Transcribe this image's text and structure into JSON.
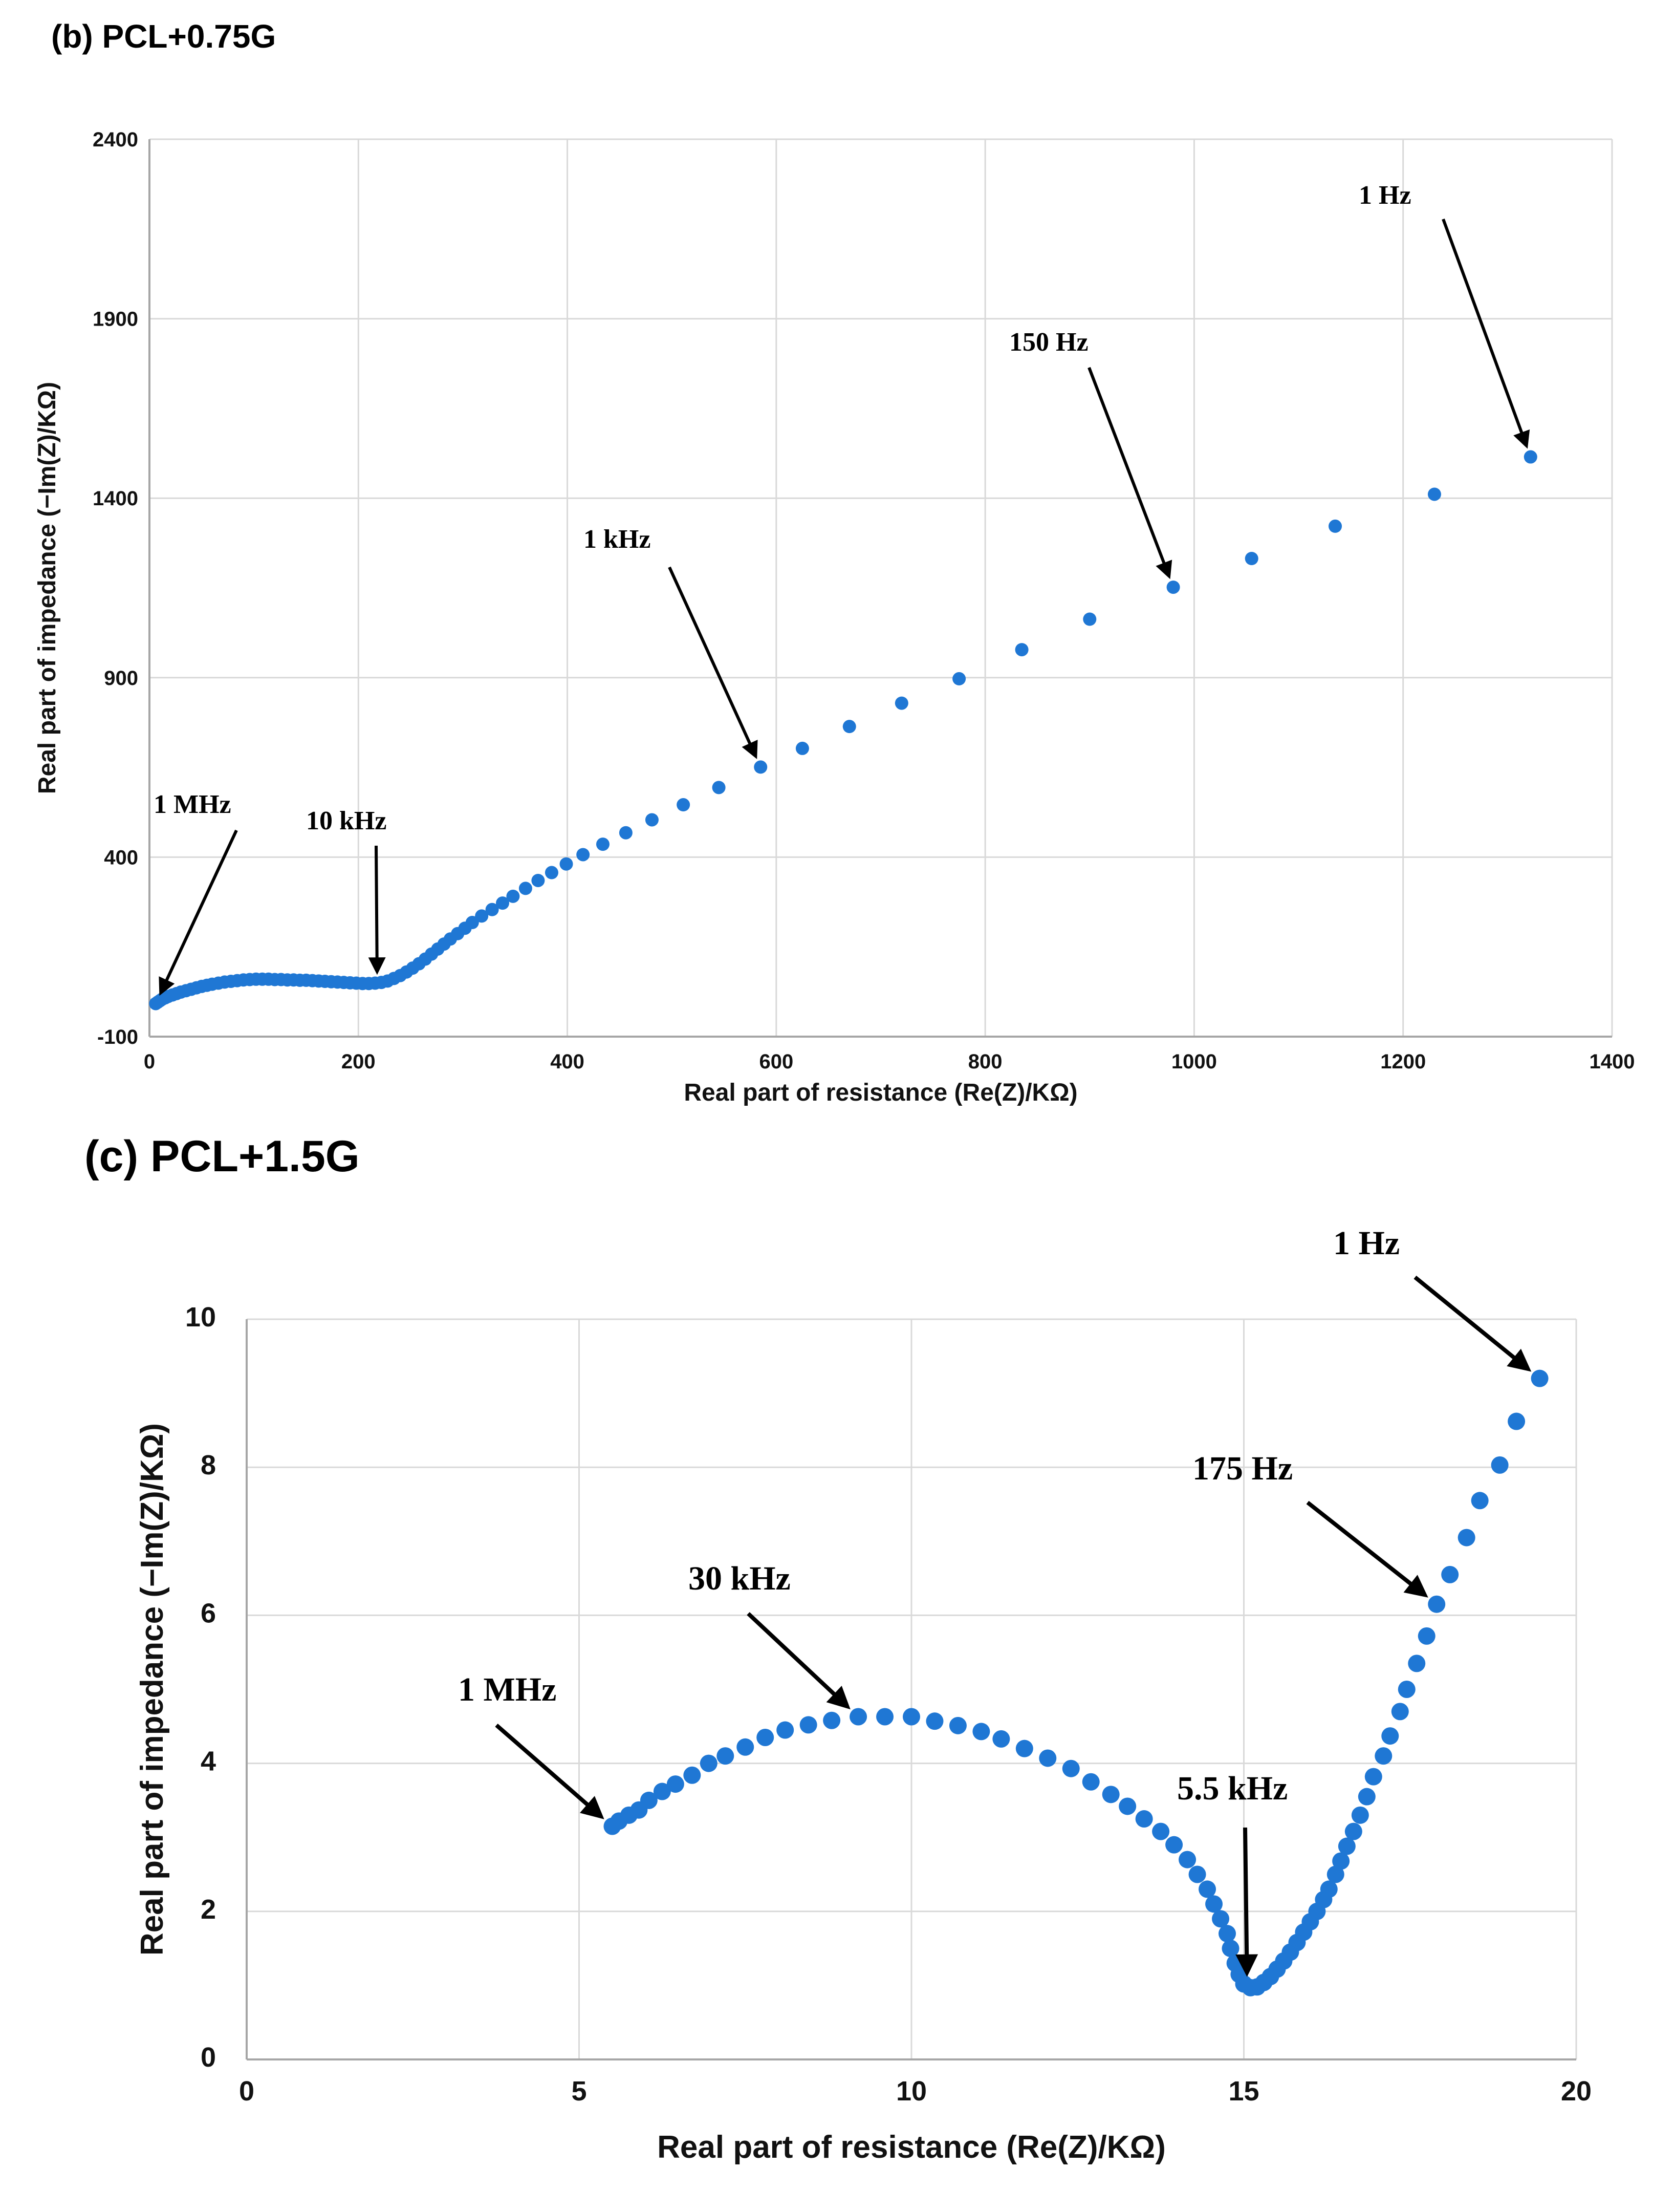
{
  "panels": {
    "b_title": "(b) PCL+0.75G",
    "c_title": "(c) PCL+1.5G"
  },
  "colors": {
    "marker": "#1f77d4",
    "grid": "#d9d9d9",
    "axis": "#a6a6a6",
    "arrow": "#000000"
  },
  "chart_data": [
    {
      "type": "scatter",
      "title": "(b) PCL+0.75G",
      "xlabel": "Real part of resistance (Re(Z)/KΩ)",
      "ylabel": "Real part of impedance (−Im(Z)/KΩ)",
      "xlim": [
        0,
        1400
      ],
      "ylim": [
        -100,
        2400
      ],
      "xticks": [
        "0",
        "200",
        "400",
        "600",
        "800",
        "1000",
        "1200",
        "1400"
      ],
      "yticks": [
        "-100",
        "400",
        "900",
        "1400",
        "1900",
        "2400"
      ],
      "grid": true,
      "points": [
        [
          6,
          -8
        ],
        [
          8,
          -4
        ],
        [
          10,
          0
        ],
        [
          12,
          4
        ],
        [
          15,
          8
        ],
        [
          18,
          12
        ],
        [
          22,
          16
        ],
        [
          26,
          20
        ],
        [
          30,
          24
        ],
        [
          35,
          28
        ],
        [
          40,
          32
        ],
        [
          45,
          36
        ],
        [
          50,
          40
        ],
        [
          55,
          43
        ],
        [
          60,
          46
        ],
        [
          66,
          49
        ],
        [
          72,
          52
        ],
        [
          78,
          54
        ],
        [
          84,
          56
        ],
        [
          90,
          58
        ],
        [
          96,
          59
        ],
        [
          102,
          60
        ],
        [
          108,
          60
        ],
        [
          114,
          60
        ],
        [
          120,
          59
        ],
        [
          126,
          59
        ],
        [
          132,
          58
        ],
        [
          138,
          58
        ],
        [
          144,
          57
        ],
        [
          150,
          57
        ],
        [
          156,
          56
        ],
        [
          162,
          55
        ],
        [
          168,
          54
        ],
        [
          174,
          53
        ],
        [
          180,
          52
        ],
        [
          186,
          51
        ],
        [
          192,
          50
        ],
        [
          198,
          49
        ],
        [
          204,
          48
        ],
        [
          210,
          48
        ],
        [
          216,
          49
        ],
        [
          222,
          51
        ],
        [
          228,
          55
        ],
        [
          234,
          62
        ],
        [
          240,
          70
        ],
        [
          246,
          80
        ],
        [
          252,
          91
        ],
        [
          258,
          103
        ],
        [
          264,
          116
        ],
        [
          270,
          130
        ],
        [
          276,
          144
        ],
        [
          282,
          158
        ],
        [
          288,
          172
        ],
        [
          295,
          187
        ],
        [
          302,
          202
        ],
        [
          309,
          218
        ],
        [
          318,
          236
        ],
        [
          328,
          254
        ],
        [
          338,
          272
        ],
        [
          348,
          291
        ],
        [
          360,
          313
        ],
        [
          372,
          335
        ],
        [
          385,
          357
        ],
        [
          399,
          381
        ],
        [
          415,
          407
        ],
        [
          434,
          436
        ],
        [
          456,
          468
        ],
        [
          481,
          504
        ],
        [
          511,
          546
        ],
        [
          545,
          594
        ],
        [
          585,
          651
        ],
        [
          625,
          703
        ],
        [
          670,
          764
        ],
        [
          720,
          829
        ],
        [
          775,
          897
        ],
        [
          835,
          978
        ],
        [
          900,
          1063
        ],
        [
          980,
          1152
        ],
        [
          1055,
          1232
        ],
        [
          1135,
          1322
        ],
        [
          1230,
          1411
        ],
        [
          1322,
          1515
        ]
      ],
      "annotations": [
        {
          "label": "1 MHz",
          "x": 6,
          "y": -8
        },
        {
          "label": "10 kHz",
          "x": 218,
          "y": 48
        },
        {
          "label": "1 kHz",
          "x": 585,
          "y": 651
        },
        {
          "label": "150 Hz",
          "x": 980,
          "y": 1152
        },
        {
          "label": "1 Hz",
          "x": 1322,
          "y": 1515
        }
      ]
    },
    {
      "type": "scatter",
      "title": "(c) PCL+1.5G",
      "xlabel": "Real part of resistance (Re(Z)/KΩ)",
      "ylabel": "Real part of impedance (−Im(Z)/KΩ)",
      "xlim": [
        0,
        20
      ],
      "ylim": [
        0,
        10
      ],
      "xticks": [
        "0",
        "5",
        "10",
        "15",
        "20"
      ],
      "yticks": [
        "0",
        "2",
        "4",
        "6",
        "8",
        "10"
      ],
      "grid": true,
      "points": [
        [
          5.5,
          3.15
        ],
        [
          5.6,
          3.22
        ],
        [
          5.75,
          3.3
        ],
        [
          5.9,
          3.37
        ],
        [
          6.05,
          3.5
        ],
        [
          6.25,
          3.62
        ],
        [
          6.45,
          3.72
        ],
        [
          6.7,
          3.84
        ],
        [
          6.95,
          4.0
        ],
        [
          7.2,
          4.1
        ],
        [
          7.5,
          4.22
        ],
        [
          7.8,
          4.35
        ],
        [
          8.1,
          4.45
        ],
        [
          8.45,
          4.52
        ],
        [
          8.8,
          4.58
        ],
        [
          9.2,
          4.63
        ],
        [
          9.6,
          4.63
        ],
        [
          10.0,
          4.63
        ],
        [
          10.35,
          4.57
        ],
        [
          10.7,
          4.51
        ],
        [
          11.05,
          4.43
        ],
        [
          11.35,
          4.33
        ],
        [
          11.7,
          4.2
        ],
        [
          12.05,
          4.07
        ],
        [
          12.4,
          3.93
        ],
        [
          12.7,
          3.75
        ],
        [
          13.0,
          3.58
        ],
        [
          13.25,
          3.42
        ],
        [
          13.5,
          3.25
        ],
        [
          13.75,
          3.08
        ],
        [
          13.95,
          2.9
        ],
        [
          14.15,
          2.7
        ],
        [
          14.3,
          2.5
        ],
        [
          14.45,
          2.3
        ],
        [
          14.55,
          2.1
        ],
        [
          14.65,
          1.9
        ],
        [
          14.75,
          1.7
        ],
        [
          14.8,
          1.5
        ],
        [
          14.87,
          1.3
        ],
        [
          14.93,
          1.15
        ],
        [
          15.0,
          1.02
        ],
        [
          15.1,
          0.97
        ],
        [
          15.2,
          0.98
        ],
        [
          15.3,
          1.04
        ],
        [
          15.4,
          1.12
        ],
        [
          15.5,
          1.22
        ],
        [
          15.6,
          1.33
        ],
        [
          15.7,
          1.45
        ],
        [
          15.8,
          1.58
        ],
        [
          15.9,
          1.72
        ],
        [
          16.0,
          1.86
        ],
        [
          16.1,
          2.0
        ],
        [
          16.2,
          2.16
        ],
        [
          16.28,
          2.3
        ],
        [
          16.38,
          2.5
        ],
        [
          16.46,
          2.68
        ],
        [
          16.55,
          2.88
        ],
        [
          16.65,
          3.08
        ],
        [
          16.75,
          3.3
        ],
        [
          16.85,
          3.55
        ],
        [
          16.95,
          3.82
        ],
        [
          17.1,
          4.1
        ],
        [
          17.2,
          4.37
        ],
        [
          17.35,
          4.7
        ],
        [
          17.45,
          5.0
        ],
        [
          17.6,
          5.35
        ],
        [
          17.75,
          5.72
        ],
        [
          17.9,
          6.15
        ],
        [
          18.1,
          6.55
        ],
        [
          18.35,
          7.05
        ],
        [
          18.55,
          7.55
        ],
        [
          18.85,
          8.03
        ],
        [
          19.1,
          8.62
        ],
        [
          19.45,
          9.2
        ]
      ],
      "annotations": [
        {
          "label": "1 MHz",
          "x": 5.5,
          "y": 3.15
        },
        {
          "label": "30 kHz",
          "x": 9.2,
          "y": 4.63
        },
        {
          "label": "5.5 kHz",
          "x": 15.05,
          "y": 0.97
        },
        {
          "label": "175 Hz",
          "x": 17.9,
          "y": 6.15
        },
        {
          "label": "1 Hz",
          "x": 19.45,
          "y": 9.2
        }
      ]
    }
  ]
}
